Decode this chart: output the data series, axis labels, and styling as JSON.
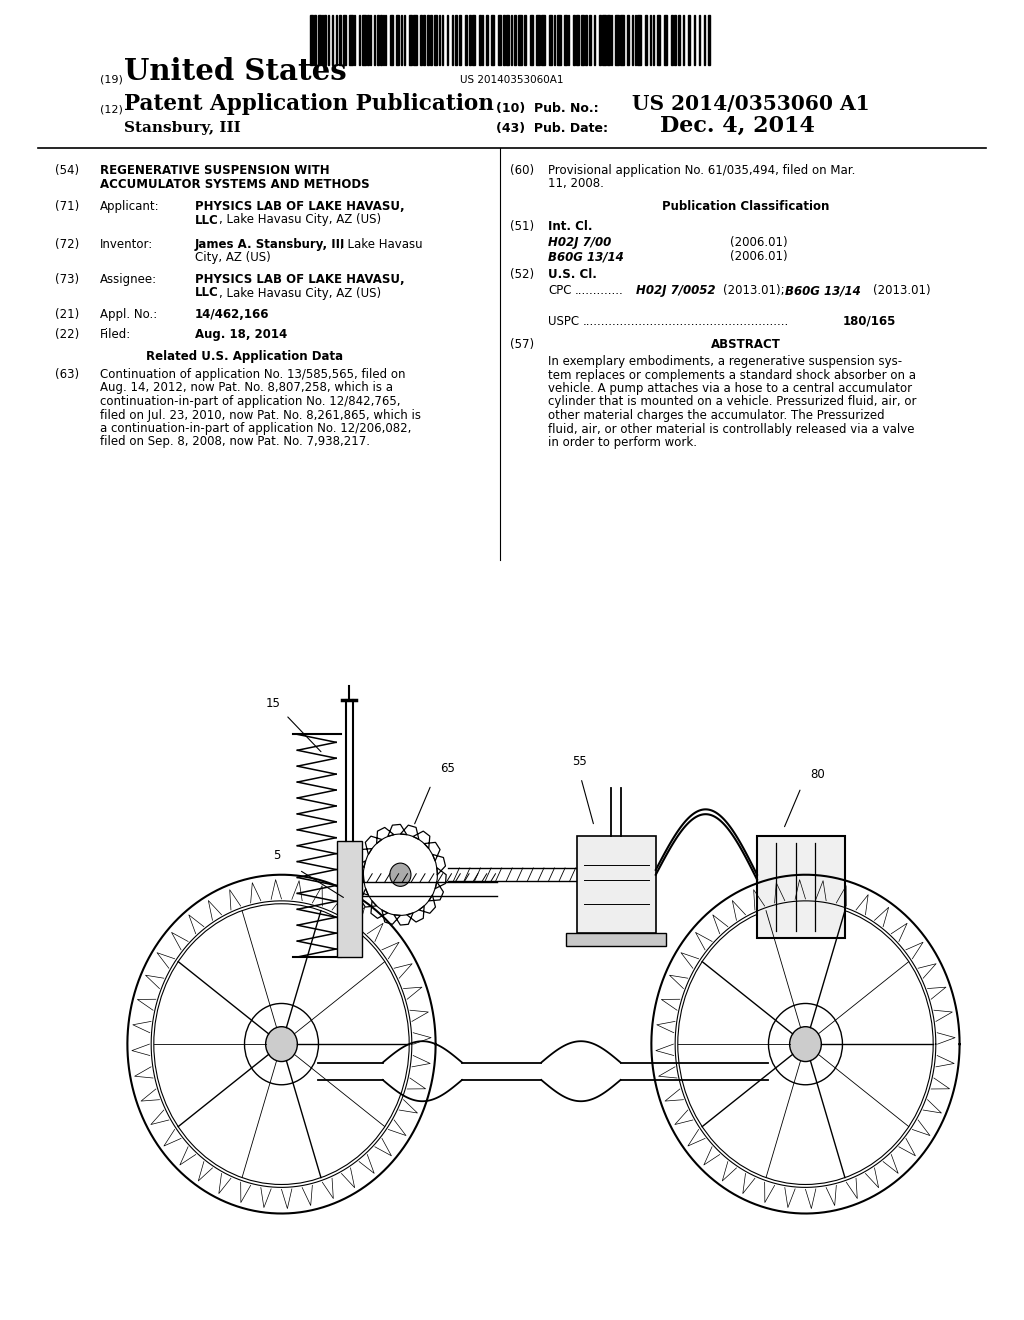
{
  "barcode_text": "US 20140353060A1",
  "country": "United States",
  "doc_type": "Patent Application Publication",
  "inventor_last": "Stansbury, III",
  "field_10_value": "US 2014/0353060 A1",
  "field_43_value": "Dec. 4, 2014",
  "bg_color": "#ffffff"
}
